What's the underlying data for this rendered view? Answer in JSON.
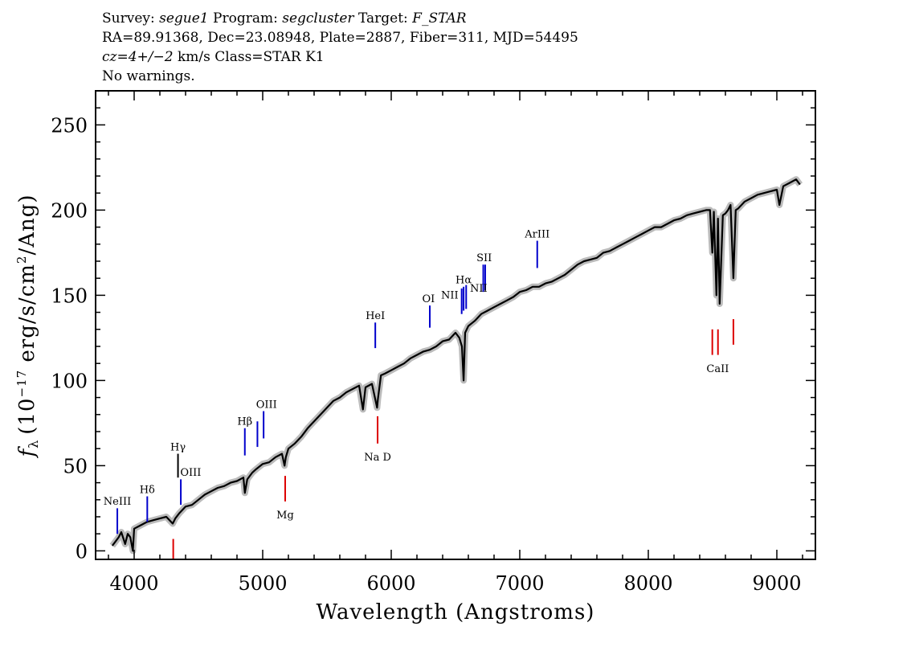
{
  "header": {
    "line1": {
      "survey_label": "Survey:",
      "survey_value": "segue1",
      "program_label": "Program:",
      "program_value": "segcluster",
      "target_label": "Target:",
      "target_value": "F_STAR"
    },
    "line2": "RA=89.91368, Dec=23.08948, Plate=2887, Fiber=311, MJD=54495",
    "line3": {
      "cz": "cz=4+/−2",
      "rest": " km/s Class=STAR K1"
    },
    "line4": "No warnings."
  },
  "chart_data": {
    "type": "line",
    "xlabel": "Wavelength (Angstroms)",
    "ylabel": "fλ (10^-17 erg/s/cm^2/Ang)",
    "ylabel_parts": {
      "f": "f",
      "sub": "λ",
      "pre": "(10",
      "exp": "−17",
      "mid": " erg/s/cm",
      "exp2": "2",
      "post": "/Ang)"
    },
    "xlim": [
      3700,
      9300
    ],
    "ylim": [
      -5,
      270
    ],
    "x_ticks": [
      4000,
      5000,
      6000,
      7000,
      8000,
      9000
    ],
    "x_tick_labels": [
      "4000",
      "5000",
      "6000",
      "7000",
      "8000",
      "9000"
    ],
    "y_ticks": [
      0,
      50,
      100,
      150,
      200,
      250
    ],
    "y_tick_labels": [
      "0",
      "50",
      "100",
      "150",
      "200",
      "250"
    ],
    "series": [
      {
        "color": "#000000",
        "x": [
          3830,
          3850,
          3880,
          3900,
          3930,
          3950,
          3970,
          3990,
          4000,
          4050,
          4100,
          4150,
          4200,
          4250,
          4300,
          4320,
          4350,
          4400,
          4450,
          4500,
          4550,
          4600,
          4650,
          4700,
          4750,
          4800,
          4850,
          4861,
          4880,
          4920,
          4950,
          5000,
          5050,
          5100,
          5150,
          5170,
          5180,
          5200,
          5250,
          5300,
          5350,
          5400,
          5450,
          5500,
          5550,
          5600,
          5650,
          5700,
          5750,
          5780,
          5800,
          5850,
          5890,
          5896,
          5920,
          5950,
          6000,
          6050,
          6100,
          6150,
          6200,
          6250,
          6300,
          6350,
          6400,
          6450,
          6500,
          6530,
          6550,
          6563,
          6575,
          6600,
          6650,
          6700,
          6750,
          6800,
          6850,
          6900,
          6950,
          7000,
          7050,
          7100,
          7150,
          7200,
          7250,
          7300,
          7350,
          7400,
          7450,
          7500,
          7550,
          7600,
          7650,
          7700,
          7750,
          7800,
          7850,
          7900,
          7950,
          8000,
          8050,
          8100,
          8150,
          8200,
          8250,
          8300,
          8350,
          8400,
          8450,
          8480,
          8498,
          8510,
          8530,
          8542,
          8555,
          8580,
          8600,
          8620,
          8640,
          8662,
          8680,
          8700,
          8750,
          8800,
          8850,
          8900,
          8950,
          9000,
          9020,
          9050,
          9100,
          9150,
          9180
        ],
        "y": [
          3,
          5,
          8,
          11,
          4,
          10,
          8,
          0,
          13,
          15,
          17,
          18,
          19,
          20,
          16,
          19,
          22,
          26,
          27,
          30,
          33,
          35,
          37,
          38,
          40,
          41,
          43,
          34,
          42,
          46,
          48,
          51,
          52,
          55,
          57,
          50,
          55,
          60,
          63,
          67,
          72,
          76,
          80,
          84,
          88,
          90,
          93,
          95,
          97,
          83,
          96,
          98,
          84,
          89,
          103,
          104,
          106,
          108,
          110,
          113,
          115,
          117,
          118,
          120,
          123,
          124,
          128,
          125,
          120,
          100,
          128,
          132,
          135,
          139,
          141,
          143,
          145,
          147,
          149,
          152,
          153,
          155,
          155,
          157,
          158,
          160,
          162,
          165,
          168,
          170,
          171,
          172,
          175,
          176,
          178,
          180,
          182,
          184,
          186,
          188,
          190,
          190,
          192,
          194,
          195,
          197,
          198,
          199,
          200,
          200,
          175,
          199,
          150,
          195,
          145,
          197,
          198,
          200,
          203,
          160,
          200,
          201,
          205,
          207,
          209,
          210,
          211,
          212,
          203,
          214,
          216,
          218,
          215
        ]
      }
    ],
    "emission_lines": [
      {
        "name": "NeIII",
        "x": 3869,
        "y": [
          10,
          25
        ],
        "color": "#0000cc"
      },
      {
        "name": "Hδ",
        "x": 4102,
        "y": [
          17,
          32
        ],
        "color": "#0000cc"
      },
      {
        "name": "Hγ",
        "x": 4341,
        "y": [
          43,
          57
        ],
        "color": "#000000"
      },
      {
        "name": "OIII",
        "x": 4363,
        "y": [
          27,
          42
        ],
        "color": "#0000cc"
      },
      {
        "name": "Hβ",
        "x": 4861,
        "y": [
          56,
          72
        ],
        "color": "#0000cc"
      },
      {
        "name": "OIII",
        "x": 4959,
        "y": [
          61,
          76
        ],
        "color": "#0000cc"
      },
      {
        "name": "OIII",
        "x": 5007,
        "y": [
          66,
          82
        ],
        "color": "#0000cc"
      },
      {
        "name": "HeI",
        "x": 5876,
        "y": [
          119,
          134
        ],
        "color": "#0000cc"
      },
      {
        "name": "OI",
        "x": 6300,
        "y": [
          131,
          144
        ],
        "color": "#0000cc"
      },
      {
        "name": "NII",
        "x": 6548,
        "y": [
          139,
          154
        ],
        "color": "#0000cc"
      },
      {
        "name": "Hα",
        "x": 6563,
        "y": [
          141,
          155
        ],
        "color": "#0000cc"
      },
      {
        "name": "NII",
        "x": 6583,
        "y": [
          142,
          156
        ],
        "color": "#0000cc"
      },
      {
        "name": "SII",
        "x": 6716,
        "y": [
          152,
          168
        ],
        "color": "#0000cc"
      },
      {
        "name": "SII",
        "x": 6731,
        "y": [
          153,
          168
        ],
        "color": "#0000cc"
      },
      {
        "name": "ArIII",
        "x": 7136,
        "y": [
          166,
          182
        ],
        "color": "#0000cc"
      }
    ],
    "absorption_lines": [
      {
        "name": "",
        "x": 4304,
        "y": [
          -5,
          7
        ],
        "color": "#dd0000"
      },
      {
        "name": "Mg",
        "x": 5175,
        "y": [
          29,
          44
        ],
        "color": "#dd0000"
      },
      {
        "name": "Na D",
        "x": 5894,
        "y": [
          63,
          79
        ],
        "color": "#dd0000"
      },
      {
        "name": "CaII",
        "x": 8498,
        "y": [
          115,
          130
        ],
        "color": "#dd0000"
      },
      {
        "name": "CaII",
        "x": 8542,
        "y": [
          115,
          130
        ],
        "color": "#dd0000"
      },
      {
        "name": "CaII",
        "x": 8662,
        "y": [
          121,
          136
        ],
        "color": "#dd0000"
      }
    ],
    "line_labels": [
      {
        "text": "NeIII",
        "x": 3869,
        "y": 27
      },
      {
        "text": "Hδ",
        "x": 4102,
        "y": 34
      },
      {
        "text": "Hγ",
        "x": 4341,
        "y": 59
      },
      {
        "text": "OIII",
        "x": 4440,
        "y": 44
      },
      {
        "text": "Hβ",
        "x": 4861,
        "y": 74
      },
      {
        "text": "OIII",
        "x": 5030,
        "y": 84
      },
      {
        "text": "Mg",
        "x": 5175,
        "y": 19
      },
      {
        "text": "HeI",
        "x": 5876,
        "y": 136
      },
      {
        "text": "Na  D",
        "x": 5894,
        "y": 53
      },
      {
        "text": "OI",
        "x": 6290,
        "y": 146
      },
      {
        "text": "NII",
        "x": 6455,
        "y": 148
      },
      {
        "text": "Hα",
        "x": 6563,
        "y": 157
      },
      {
        "text": "NII",
        "x": 6680,
        "y": 152
      },
      {
        "text": "SII",
        "x": 6723,
        "y": 170
      },
      {
        "text": "ArIII",
        "x": 7136,
        "y": 184
      },
      {
        "text": "CaII",
        "x": 8540,
        "y": 105
      }
    ]
  }
}
